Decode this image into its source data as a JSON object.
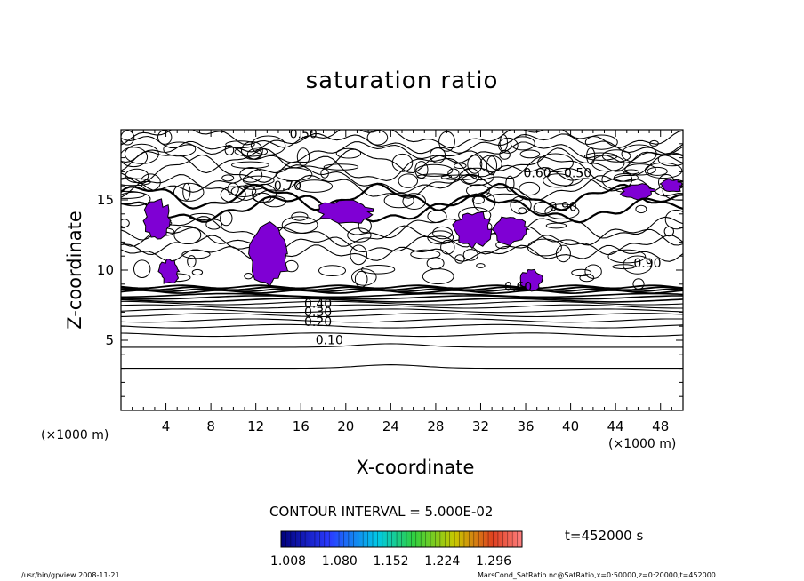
{
  "chart_data": {
    "type": "contour",
    "title": "saturation ratio",
    "xlabel": "X-coordinate",
    "ylabel": "Z-coordinate",
    "x_unit": "(×1000 m)",
    "xlim": [
      0,
      50
    ],
    "ylim": [
      0,
      20
    ],
    "x_ticks": [
      4,
      8,
      12,
      16,
      20,
      24,
      28,
      32,
      36,
      40,
      44,
      48
    ],
    "y_ticks": [
      5,
      10,
      15
    ],
    "contour_interval": "CONTOUR INTERVAL = 5.000E-02",
    "contour_labels": [
      {
        "text": "0.10",
        "x": 17.3,
        "z": 4.7
      },
      {
        "text": "0.20",
        "x": 16.3,
        "z": 6.0
      },
      {
        "text": "0.30",
        "x": 16.3,
        "z": 6.7
      },
      {
        "text": "0.40",
        "x": 16.3,
        "z": 7.3
      },
      {
        "text": "0.50",
        "x": 39.4,
        "z": 16.6
      },
      {
        "text": "0.60",
        "x": 35.8,
        "z": 16.6
      },
      {
        "text": "0.70",
        "x": 13.6,
        "z": 15.7
      },
      {
        "text": "0.90",
        "x": 38.1,
        "z": 14.2
      },
      {
        "text": "0.90",
        "x": 45.6,
        "z": 10.2
      },
      {
        "text": "0.50",
        "x": 15.0,
        "z": 19.4
      },
      {
        "text": "0.60",
        "x": 34.1,
        "z": 8.5
      }
    ],
    "filled_regions": [
      {
        "x": [
          11.5,
          15.0
        ],
        "z": [
          8.8,
          13.5
        ]
      },
      {
        "x": [
          3.4,
          5.2
        ],
        "z": [
          9.0,
          10.8
        ]
      },
      {
        "x": [
          17.5,
          22.5
        ],
        "z": [
          13.3,
          15.0
        ]
      },
      {
        "x": [
          29.5,
          33.0
        ],
        "z": [
          11.6,
          14.2
        ]
      },
      {
        "x": [
          33.0,
          36.2
        ],
        "z": [
          11.8,
          14.0
        ]
      },
      {
        "x": [
          35.5,
          37.5
        ],
        "z": [
          8.5,
          10.0
        ]
      },
      {
        "x": [
          2.0,
          4.5
        ],
        "z": [
          12.0,
          15.0
        ]
      },
      {
        "x": [
          44.5,
          47.5
        ],
        "z": [
          15.0,
          16.2
        ]
      },
      {
        "x": [
          48.0,
          50.0
        ],
        "z": [
          15.5,
          16.5
        ]
      }
    ],
    "colorbar": {
      "ticks": [
        "1.008",
        "1.080",
        "1.152",
        "1.224",
        "1.296"
      ],
      "range": [
        1.008,
        1.296
      ]
    },
    "colors": {
      "fill": "#7f00d4",
      "line": "#000000"
    }
  },
  "annotations": {
    "time": "t=452000 s",
    "footer_left": "/usr/bin/gpview  2008-11-21",
    "footer_right": "MarsCond_SatRatio.nc@SatRatio,x=0:50000,z=0:20000,t=452000"
  }
}
